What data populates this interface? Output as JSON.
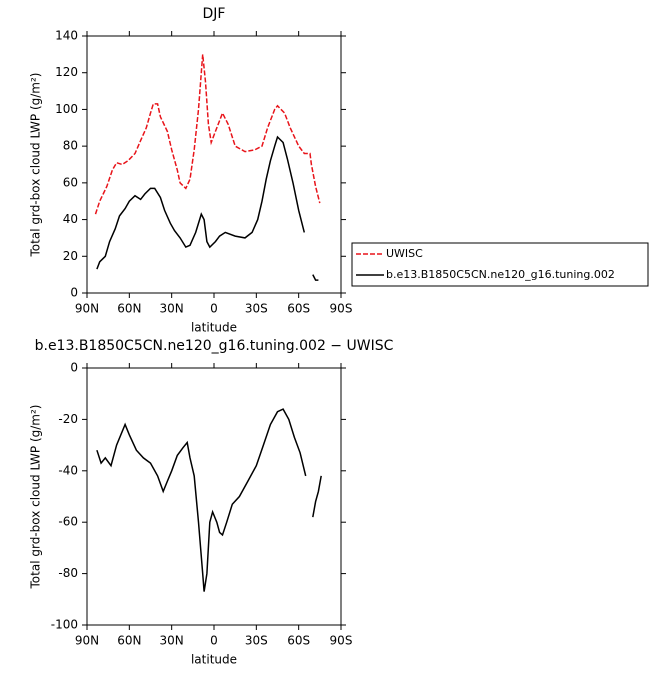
{
  "chart_data": [
    {
      "type": "line",
      "title": "DJF",
      "xlabel": "latitude",
      "ylabel": "Total grd-box cloud LWP (g/m²)",
      "xlim": [
        90,
        -90
      ],
      "ylim": [
        0,
        140
      ],
      "xticks": [
        {
          "value": 90,
          "label": "90N"
        },
        {
          "value": 60,
          "label": "60N"
        },
        {
          "value": 30,
          "label": "30N"
        },
        0,
        {
          "value": -30,
          "label": "30S"
        },
        {
          "value": -60,
          "label": "60S"
        },
        {
          "value": -90,
          "label": "90S"
        }
      ],
      "yticks": [
        0,
        20,
        40,
        60,
        80,
        100,
        120,
        140
      ],
      "legend": "right",
      "series": [
        {
          "name": "UWISC",
          "color": "#e8141a",
          "dashed": true,
          "x": [
            84,
            81,
            76,
            72,
            69,
            65,
            61,
            56,
            52,
            48,
            45,
            43,
            40,
            38,
            33,
            30,
            26,
            24,
            20,
            17,
            14,
            11,
            8,
            6,
            4,
            2,
            -1,
            -6,
            -10,
            -15,
            -22,
            -29,
            -34,
            -38,
            -43,
            -45,
            -50,
            -54,
            -60,
            -64,
            -68,
            -69,
            -72,
            -75
          ],
          "values": [
            43,
            50,
            58,
            67,
            71,
            70,
            72,
            76,
            83,
            90,
            98,
            103,
            103,
            96,
            88,
            78,
            67,
            60,
            57,
            62,
            78,
            100,
            130,
            115,
            92,
            82,
            88,
            98,
            92,
            80,
            77,
            78,
            80,
            90,
            100,
            102,
            98,
            90,
            80,
            76,
            76,
            70,
            58,
            49
          ]
        },
        {
          "name": "b.e13.B1850C5CN.ne120_g16.tuning.002",
          "color": "#000000",
          "dashed": false,
          "x": [
            83,
            81,
            77,
            74,
            70,
            67,
            63,
            60,
            56,
            52,
            49,
            45,
            42,
            38,
            35,
            31,
            28,
            24,
            20,
            17,
            13,
            9,
            7,
            5,
            3,
            -1,
            -4,
            -8,
            -15,
            -22,
            -27,
            -31,
            -34,
            -37,
            -40,
            -43,
            -45,
            -49,
            -52,
            -56,
            -60,
            -64,
            -67,
            -70,
            -72,
            -74
          ],
          "values": [
            13,
            17,
            20,
            28,
            35,
            42,
            46,
            50,
            53,
            51,
            54,
            57,
            57,
            52,
            45,
            38,
            34,
            30,
            25,
            26,
            33,
            43,
            40,
            28,
            25,
            28,
            31,
            33,
            31,
            30,
            33,
            40,
            50,
            62,
            72,
            80,
            85,
            82,
            73,
            60,
            45,
            33,
            null,
            10,
            7,
            7
          ]
        }
      ]
    },
    {
      "type": "line",
      "title": "b.e13.B1850C5CN.ne120_g16.tuning.002 − UWISC",
      "xlabel": "latitude",
      "ylabel": "Total grd-box cloud LWP (g/m²)",
      "xlim": [
        90,
        -90
      ],
      "ylim": [
        -100,
        0
      ],
      "xticks": [
        {
          "value": 90,
          "label": "90N"
        },
        {
          "value": 60,
          "label": "60N"
        },
        {
          "value": 30,
          "label": "30N"
        },
        0,
        {
          "value": -30,
          "label": "30S"
        },
        {
          "value": -60,
          "label": "60S"
        },
        {
          "value": -90,
          "label": "90S"
        }
      ],
      "yticks": [
        -100,
        -80,
        -60,
        -40,
        -20,
        0
      ],
      "series": [
        {
          "color": "#000000",
          "dashed": false,
          "x": [
            83,
            80,
            77,
            73,
            69,
            63,
            60,
            55,
            50,
            45,
            40,
            36,
            33,
            30,
            26,
            22,
            19,
            17,
            14,
            11,
            8,
            7,
            5,
            3,
            1,
            -2,
            -4,
            -6,
            -9,
            -13,
            -18,
            -24,
            -30,
            -35,
            -40,
            -45,
            -49,
            -53,
            -57,
            -61,
            -65,
            -67,
            -70,
            -72,
            -74,
            -76
          ],
          "values": [
            -32,
            -37,
            -35,
            -38,
            -30,
            -22,
            -26,
            -32,
            -35,
            -37,
            -42,
            -48,
            -44,
            -40,
            -34,
            -31,
            -29,
            -35,
            -42,
            -60,
            -80,
            -87,
            -80,
            -60,
            -56,
            -60,
            -64,
            -65,
            -60,
            -53,
            -50,
            -44,
            -38,
            -30,
            -22,
            -17,
            -16,
            -20,
            -27,
            -33,
            -42,
            null,
            -58,
            -52,
            -48,
            -42
          ]
        }
      ]
    }
  ]
}
